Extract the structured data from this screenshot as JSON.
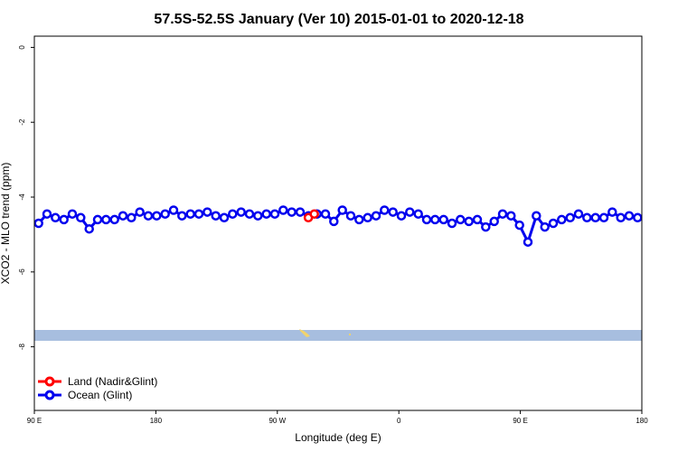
{
  "chart_data": {
    "type": "line",
    "title": "57.5S-52.5S January (Ver 10)   2015-01-01 to 2020-12-18",
    "xlabel": "Longitude (deg E)",
    "ylabel": "XCO2 - MLO trend (ppm)",
    "xlim": [
      90,
      450
    ],
    "ylim": [
      -9.7,
      0.3
    ],
    "x_ticks": [
      {
        "value": 90,
        "label": "90 E"
      },
      {
        "value": 162,
        "label": "180"
      },
      {
        "value": 234,
        "label": "90 W"
      },
      {
        "value": 306,
        "label": "0"
      },
      {
        "value": 378,
        "label": "90 E"
      },
      {
        "value": 450,
        "label": "180"
      }
    ],
    "y_ticks": [
      0,
      -2,
      -4,
      -6,
      -8
    ],
    "grid": false,
    "legend_position": "bottom-left",
    "colors": {
      "land": "#ff0000",
      "ocean": "#0000ee",
      "ocean_band": "#a7bedf",
      "land_patch": "#f2d36b"
    },
    "series": [
      {
        "name": "Land (Nadir&Glint)",
        "color": "#ff0000",
        "x": [
          252.4,
          255.9
        ],
        "y": [
          -4.55,
          -4.45
        ]
      },
      {
        "name": "Ocean (Glint)",
        "color": "#0000ee",
        "x": [
          92.5,
          97.5,
          102.5,
          107.5,
          112.5,
          117.5,
          122.5,
          127.5,
          132.5,
          137.5,
          142.5,
          147.5,
          152.5,
          157.5,
          162.5,
          167.5,
          172.5,
          177.5,
          182.5,
          187.5,
          192.5,
          197.5,
          202.5,
          207.5,
          212.5,
          217.5,
          222.5,
          227.5,
          232.5,
          237.5,
          242.5,
          247.5,
          252.5,
          257.5,
          262.5,
          267.5,
          272.5,
          277.5,
          282.5,
          287.5,
          292.5,
          297.5,
          302.5,
          307.5,
          312.5,
          317.5,
          322.5,
          327.5,
          332.5,
          337.5,
          342.5,
          347.5,
          352.5,
          357.5,
          362.5,
          367.5,
          372.5,
          377.5,
          382.5,
          387.5,
          392.5,
          397.5,
          402.5,
          407.5,
          412.5,
          417.5,
          422.5,
          427.5,
          432.5,
          437.5,
          442.5,
          447.5
        ],
        "y": [
          -4.7,
          -4.45,
          -4.55,
          -4.6,
          -4.45,
          -4.55,
          -4.85,
          -4.6,
          -4.6,
          -4.6,
          -4.5,
          -4.55,
          -4.4,
          -4.5,
          -4.5,
          -4.45,
          -4.35,
          -4.5,
          -4.45,
          -4.45,
          -4.4,
          -4.5,
          -4.55,
          -4.45,
          -4.4,
          -4.45,
          -4.5,
          -4.45,
          -4.45,
          -4.35,
          -4.4,
          -4.4,
          -4.5,
          -4.45,
          -4.45,
          -4.65,
          -4.35,
          -4.5,
          -4.6,
          -4.55,
          -4.5,
          -4.35,
          -4.4,
          -4.5,
          -4.4,
          -4.45,
          -4.6,
          -4.6,
          -4.6,
          -4.7,
          -4.6,
          -4.65,
          -4.6,
          -4.8,
          -4.65,
          -4.45,
          -4.5,
          -4.75,
          -5.2,
          -4.5,
          -4.8,
          -4.7,
          -4.6,
          -4.55,
          -4.45,
          -4.55,
          -4.55,
          -4.55,
          -4.4,
          -4.55,
          -4.5,
          -4.55
        ]
      }
    ]
  }
}
